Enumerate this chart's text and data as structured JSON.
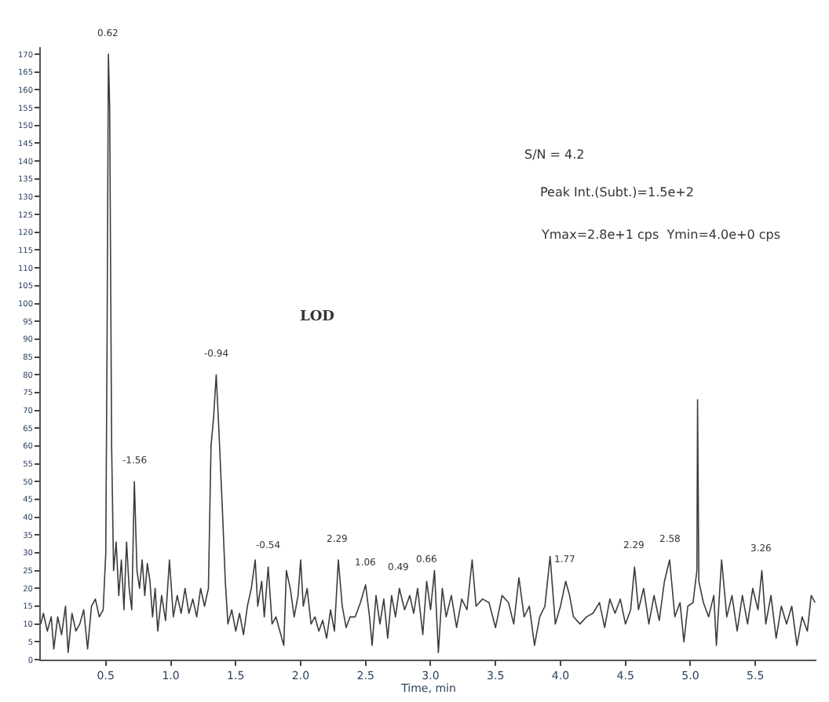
{
  "chart_data": {
    "type": "line",
    "xlabel": "Time, min",
    "marker": "none",
    "line_style": "solid",
    "xlim": [
      0,
      5.97
    ],
    "ylim": [
      0,
      172
    ],
    "xticks": [
      0.5,
      {
        "value": 1,
        "label": "1.0"
      },
      1.5,
      {
        "value": 2,
        "label": "2.0"
      },
      2.5,
      {
        "value": 3,
        "label": "3.0"
      },
      3.5,
      {
        "value": 4,
        "label": "4.0"
      },
      4.5,
      {
        "value": 5,
        "label": "5.0"
      },
      5.5
    ],
    "yticks": [
      0,
      5,
      10,
      15,
      20,
      25,
      30,
      35,
      40,
      45,
      50,
      55,
      60,
      65,
      70,
      75,
      80,
      85,
      90,
      95,
      100,
      105,
      110,
      115,
      120,
      125,
      130,
      135,
      140,
      145,
      150,
      155,
      160,
      165,
      170
    ],
    "series": [
      {
        "color": "#3c3c3c",
        "x": [
          0.0,
          0.02,
          0.05,
          0.08,
          0.1,
          0.13,
          0.16,
          0.19,
          0.21,
          0.24,
          0.27,
          0.3,
          0.33,
          0.36,
          0.39,
          0.42,
          0.45,
          0.48,
          0.5,
          0.51,
          0.52,
          0.53,
          0.545,
          0.56,
          0.58,
          0.6,
          0.62,
          0.64,
          0.66,
          0.68,
          0.7,
          0.72,
          0.74,
          0.76,
          0.78,
          0.8,
          0.82,
          0.84,
          0.86,
          0.88,
          0.9,
          0.93,
          0.96,
          0.99,
          1.02,
          1.05,
          1.08,
          1.11,
          1.14,
          1.17,
          1.2,
          1.23,
          1.26,
          1.29,
          1.31,
          1.33,
          1.35,
          1.37,
          1.4,
          1.42,
          1.44,
          1.47,
          1.5,
          1.53,
          1.56,
          1.59,
          1.62,
          1.65,
          1.67,
          1.7,
          1.72,
          1.75,
          1.78,
          1.81,
          1.84,
          1.87,
          1.89,
          1.92,
          1.95,
          1.98,
          2.0,
          2.02,
          2.05,
          2.08,
          2.11,
          2.14,
          2.17,
          2.2,
          2.23,
          2.26,
          2.29,
          2.32,
          2.35,
          2.38,
          2.42,
          2.46,
          2.5,
          2.53,
          2.55,
          2.58,
          2.61,
          2.64,
          2.67,
          2.7,
          2.73,
          2.76,
          2.8,
          2.84,
          2.87,
          2.9,
          2.94,
          2.97,
          3.0,
          3.03,
          3.06,
          3.09,
          3.12,
          3.16,
          3.2,
          3.24,
          3.28,
          3.32,
          3.35,
          3.4,
          3.45,
          3.5,
          3.55,
          3.6,
          3.64,
          3.68,
          3.72,
          3.76,
          3.8,
          3.84,
          3.88,
          3.92,
          3.96,
          4.0,
          4.04,
          4.07,
          4.1,
          4.15,
          4.2,
          4.25,
          4.3,
          4.34,
          4.38,
          4.42,
          4.46,
          4.5,
          4.54,
          4.57,
          4.6,
          4.64,
          4.68,
          4.72,
          4.76,
          4.8,
          4.84,
          4.88,
          4.92,
          4.95,
          4.98,
          5.02,
          5.05,
          5.055,
          5.065,
          5.1,
          5.14,
          5.18,
          5.2,
          5.24,
          5.28,
          5.32,
          5.36,
          5.4,
          5.44,
          5.48,
          5.52,
          5.55,
          5.58,
          5.62,
          5.66,
          5.7,
          5.74,
          5.78,
          5.82,
          5.86,
          5.9,
          5.93,
          5.96
        ],
        "values": [
          10,
          13,
          8,
          12,
          3,
          12,
          7,
          15,
          2,
          13,
          8,
          10,
          14,
          3,
          15,
          17,
          12,
          14,
          30,
          90,
          170,
          155,
          60,
          25,
          33,
          18,
          28,
          14,
          33,
          20,
          14,
          50,
          25,
          20,
          28,
          18,
          27,
          22,
          12,
          20,
          8,
          18,
          11,
          28,
          12,
          18,
          13,
          20,
          13,
          17,
          12,
          20,
          15,
          20,
          60,
          68,
          80,
          65,
          40,
          22,
          10,
          14,
          8,
          13,
          7,
          15,
          20,
          28,
          15,
          22,
          12,
          26,
          10,
          12,
          8,
          4,
          25,
          20,
          12,
          18,
          28,
          15,
          20,
          10,
          12,
          8,
          11,
          6,
          14,
          8,
          28,
          15,
          9,
          12,
          12,
          16,
          21,
          12,
          4,
          18,
          10,
          17,
          6,
          18,
          12,
          20,
          14,
          18,
          13,
          20,
          7,
          22,
          14,
          25,
          2,
          20,
          12,
          18,
          9,
          17,
          14,
          28,
          15,
          17,
          16,
          9,
          18,
          16,
          10,
          23,
          12,
          15,
          4,
          12,
          15,
          29,
          10,
          15,
          22,
          18,
          12,
          10,
          12,
          13,
          16,
          9,
          17,
          13,
          17,
          10,
          14,
          26,
          14,
          20,
          10,
          18,
          11,
          22,
          28,
          12,
          16,
          5,
          15,
          16,
          25,
          73,
          22,
          16,
          12,
          18,
          4,
          28,
          12,
          18,
          8,
          18,
          10,
          20,
          14,
          25,
          10,
          18,
          6,
          15,
          10,
          15,
          4,
          12,
          8,
          18,
          16
        ]
      }
    ],
    "annotations": [
      {
        "text": "0.62",
        "x": 0.52,
        "y": 170
      },
      {
        "text": "-1.56",
        "x": 0.72,
        "y": 50
      },
      {
        "text": "-0.94",
        "x": 1.35,
        "y": 80
      },
      {
        "text": "-0.54",
        "x": 1.75,
        "y": 26
      },
      {
        "text": "2.29",
        "x": 2.29,
        "y": 28
      },
      {
        "text": "1.06",
        "x": 2.5,
        "y": 21
      },
      {
        "text": "0.49",
        "x": 2.76,
        "y": 20
      },
      {
        "text": "0.66",
        "x": 2.97,
        "y": 22
      },
      {
        "text": "1.77",
        "x": 4.04,
        "y": 22
      },
      {
        "text": "2.29",
        "x": 4.57,
        "y": 26
      },
      {
        "text": "2.58",
        "x": 4.84,
        "y": 28
      },
      {
        "text": "3.26",
        "x": 5.55,
        "y": 25
      },
      "LOD",
      "S/N = 4.2",
      "Peak Int.(Subt.)=1.5e+2",
      "Ymax=2.8e+1 cps  Ymin=4.0e+0 cps"
    ]
  }
}
